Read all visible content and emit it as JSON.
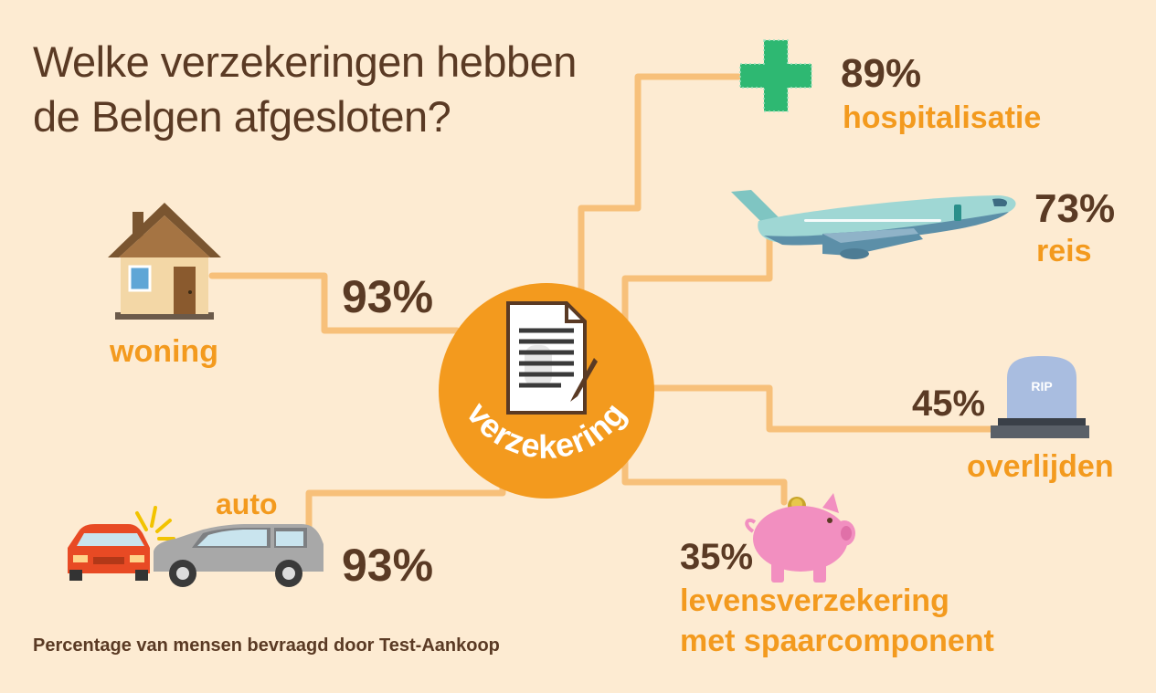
{
  "title": {
    "line1": "Welke verzekeringen hebben",
    "line2": "de Belgen afgesloten?"
  },
  "center": {
    "label": "verzekering",
    "icon": "document-pen-icon"
  },
  "items": {
    "woning": {
      "percent": "93%",
      "label": "woning",
      "icon": "house-icon"
    },
    "auto": {
      "percent": "93%",
      "label": "auto",
      "icon": "car-collision-icon"
    },
    "hospitalisatie": {
      "percent": "89%",
      "label": "hospitalisatie",
      "icon": "medical-cross-icon"
    },
    "reis": {
      "percent": "73%",
      "label": "reis",
      "icon": "airplane-icon"
    },
    "overlijden": {
      "percent": "45%",
      "label": "overlijden",
      "icon": "tombstone-icon",
      "icon_text": "RIP"
    },
    "leven": {
      "percent": "35%",
      "label_line1": "levensverzekering",
      "label_line2": "met spaarcomponent",
      "icon": "piggy-bank-icon"
    }
  },
  "footer": "Percentage van mensen bevraagd door Test-Aankoop",
  "colors": {
    "background": "#fdebd2",
    "accent": "#f39a1e",
    "connector": "#f7c07a",
    "text_dark": "#5a3a24",
    "cross": "#2eb872",
    "piggy": "#f28fc0",
    "plane": "#8fcfcd",
    "tomb": "#a9bde0"
  }
}
